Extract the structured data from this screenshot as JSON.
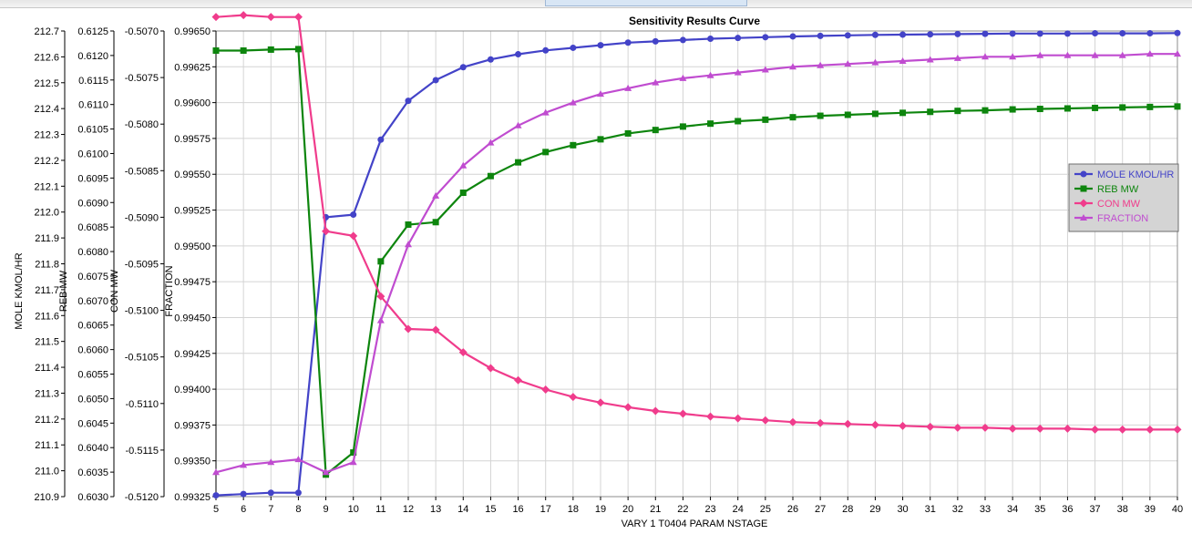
{
  "chart_data": {
    "type": "line",
    "title": "Sensitivity Results Curve",
    "xlabel": "VARY  1 T0404 PARAM NSTAGE",
    "x": [
      5,
      6,
      7,
      8,
      9,
      10,
      11,
      12,
      13,
      14,
      15,
      16,
      17,
      18,
      19,
      20,
      21,
      22,
      23,
      24,
      25,
      26,
      27,
      28,
      29,
      30,
      31,
      32,
      33,
      34,
      35,
      36,
      37,
      38,
      39,
      40
    ],
    "xlim": [
      5,
      40
    ],
    "grid": true,
    "legend_position": "right",
    "axes": [
      {
        "id": "mole",
        "label": "MOLE KMOL/HR",
        "min": 210.9,
        "max": 212.7,
        "step": 0.1,
        "decimals": 1
      },
      {
        "id": "reb",
        "label": "REB MW",
        "min": 0.603,
        "max": 0.6125,
        "step": 0.0005,
        "decimals": 4
      },
      {
        "id": "con",
        "label": "CON MW",
        "min": -0.512,
        "max": -0.507,
        "step": 0.0005,
        "decimals": 4
      },
      {
        "id": "frac",
        "label": "FRACTION",
        "min": 0.99325,
        "max": 0.9965,
        "step": 0.00025,
        "decimals": 5
      }
    ],
    "series": [
      {
        "name": "MOLE KMOL/HR",
        "axis": "mole",
        "color": "#4343c8",
        "marker": "circle",
        "values": [
          210.905,
          210.91,
          210.915,
          210.915,
          211.98,
          211.99,
          212.28,
          212.43,
          212.51,
          212.56,
          212.59,
          212.61,
          212.625,
          212.635,
          212.645,
          212.655,
          212.66,
          212.665,
          212.67,
          212.673,
          212.676,
          212.679,
          212.681,
          212.683,
          212.685,
          212.686,
          212.687,
          212.688,
          212.689,
          212.69,
          212.69,
          212.69,
          212.691,
          212.691,
          212.691,
          212.692
        ]
      },
      {
        "name": "REB MW",
        "axis": "reb",
        "color": "#0d850d",
        "marker": "square",
        "values": [
          0.6121,
          0.6121,
          0.61212,
          0.61213,
          0.60345,
          0.6039,
          0.6078,
          0.60855,
          0.6086,
          0.6092,
          0.60954,
          0.60982,
          0.61003,
          0.61017,
          0.61029,
          0.61041,
          0.61048,
          0.61055,
          0.61061,
          0.61066,
          0.61069,
          0.61074,
          0.61077,
          0.61079,
          0.61081,
          0.61083,
          0.61085,
          0.61087,
          0.61088,
          0.6109,
          0.61091,
          0.61092,
          0.61093,
          0.61094,
          0.61095,
          0.61096
        ]
      },
      {
        "name": "CON MW",
        "axis": "con",
        "color": "#f03c8c",
        "marker": "diamond",
        "values": [
          -0.50685,
          -0.50683,
          -0.50685,
          -0.50685,
          -0.50915,
          -0.5092,
          -0.50985,
          -0.5102,
          -0.51021,
          -0.51045,
          -0.51062,
          -0.51075,
          -0.51085,
          -0.51093,
          -0.51099,
          -0.51104,
          -0.51108,
          -0.51111,
          -0.51114,
          -0.51116,
          -0.51118,
          -0.5112,
          -0.51121,
          -0.51122,
          -0.51123,
          -0.51124,
          -0.51125,
          -0.51126,
          -0.51126,
          -0.51127,
          -0.51127,
          -0.51127,
          -0.51128,
          -0.51128,
          -0.51128,
          -0.51128
        ]
      },
      {
        "name": "FRACTION",
        "axis": "frac",
        "color": "#c04cd0",
        "marker": "triangle",
        "values": [
          0.99342,
          0.99347,
          0.99349,
          0.99351,
          0.99342,
          0.99349,
          0.99448,
          0.99501,
          0.99535,
          0.99556,
          0.99572,
          0.99584,
          0.99593,
          0.996,
          0.99606,
          0.9961,
          0.99614,
          0.99617,
          0.99619,
          0.99621,
          0.99623,
          0.99625,
          0.99626,
          0.99627,
          0.99628,
          0.99629,
          0.9963,
          0.99631,
          0.99632,
          0.99632,
          0.99633,
          0.99633,
          0.99633,
          0.99633,
          0.99634,
          0.99634
        ]
      }
    ]
  }
}
